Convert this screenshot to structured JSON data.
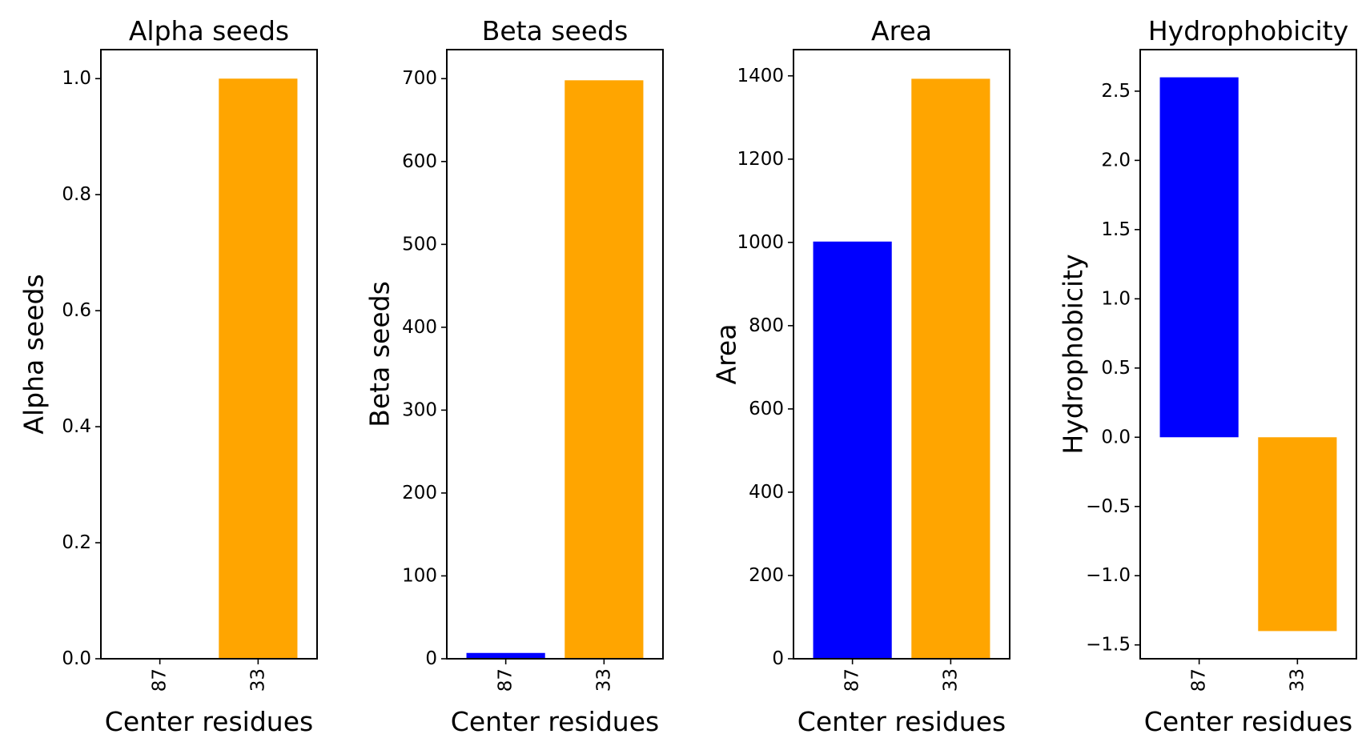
{
  "chart_data": [
    {
      "type": "bar",
      "title": "Alpha seeds",
      "xlabel": "Center residues",
      "ylabel": "Alpha seeds",
      "categories": [
        "87",
        "33"
      ],
      "values": [
        0.0,
        1.0
      ],
      "colors": [
        "#0000ff",
        "#ffa500"
      ],
      "ylim": [
        0,
        1.05
      ],
      "yticks": [
        0.0,
        0.2,
        0.4,
        0.6,
        0.8,
        1.0
      ],
      "ytick_labels": [
        "0.0",
        "0.2",
        "0.4",
        "0.6",
        "0.8",
        "1.0"
      ],
      "grid": false
    },
    {
      "type": "bar",
      "title": "Beta seeds",
      "xlabel": "Center residues",
      "ylabel": "Beta seeds",
      "categories": [
        "87",
        "33"
      ],
      "values": [
        7,
        698
      ],
      "colors": [
        "#0000ff",
        "#ffa500"
      ],
      "ylim": [
        0,
        735
      ],
      "yticks": [
        0,
        100,
        200,
        300,
        400,
        500,
        600,
        700
      ],
      "ytick_labels": [
        "0",
        "100",
        "200",
        "300",
        "400",
        "500",
        "600",
        "700"
      ],
      "grid": false
    },
    {
      "type": "bar",
      "title": "Area",
      "xlabel": "Center residues",
      "ylabel": "Area",
      "categories": [
        "87",
        "33"
      ],
      "values": [
        1002,
        1393
      ],
      "colors": [
        "#0000ff",
        "#ffa500"
      ],
      "ylim": [
        0,
        1463
      ],
      "yticks": [
        0,
        200,
        400,
        600,
        800,
        1000,
        1200,
        1400
      ],
      "ytick_labels": [
        "0",
        "200",
        "400",
        "600",
        "800",
        "1000",
        "1200",
        "1400"
      ],
      "grid": false
    },
    {
      "type": "bar",
      "title": "Hydrophobicity",
      "xlabel": "Center residues",
      "ylabel": "Hydrophobicity",
      "categories": [
        "87",
        "33"
      ],
      "values": [
        2.6,
        -1.4
      ],
      "colors": [
        "#0000ff",
        "#ffa500"
      ],
      "ylim": [
        -1.6,
        2.8
      ],
      "yticks": [
        -1.5,
        -1.0,
        -0.5,
        0.0,
        0.5,
        1.0,
        1.5,
        2.0,
        2.5
      ],
      "ytick_labels": [
        "−1.5",
        "−1.0",
        "−0.5",
        "0.0",
        "0.5",
        "1.0",
        "1.5",
        "2.0",
        "2.5"
      ],
      "grid": false
    }
  ]
}
